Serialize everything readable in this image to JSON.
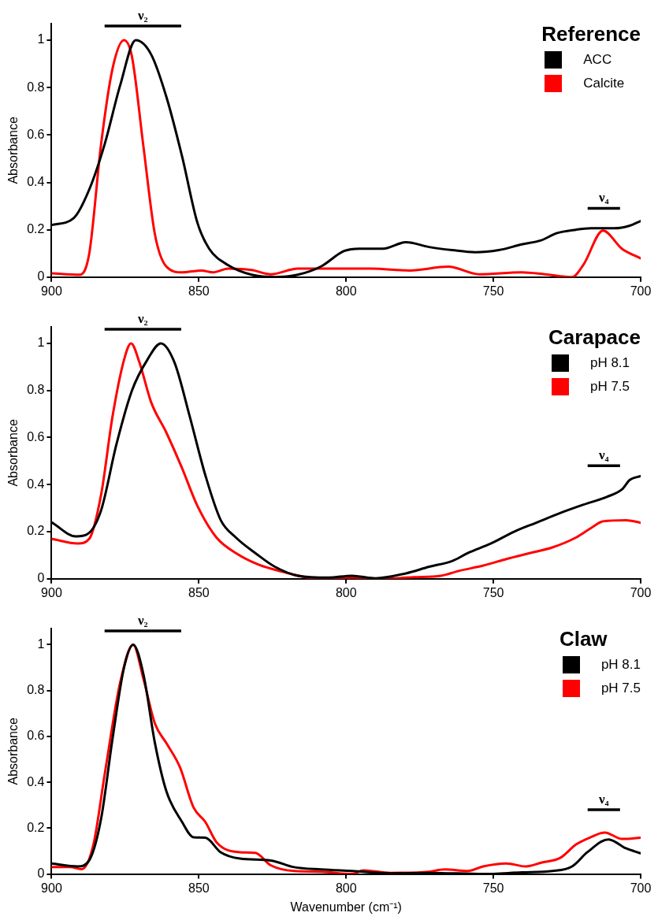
{
  "chart_data": [
    {
      "type": "line",
      "ylabel": "Absorbance",
      "legend_title": "Reference",
      "legend": "top right",
      "xlim": [
        900,
        700
      ],
      "xticks": [
        900,
        850,
        800,
        750,
        700
      ],
      "ylim": [
        0,
        1.07
      ],
      "yticks": [
        0,
        0.2,
        0.4,
        0.6,
        0.8,
        1
      ],
      "grid": false,
      "marker": "none",
      "line_style": "solid",
      "series": [
        {
          "name": "ν₂",
          "type": "line",
          "color": "#000000",
          "x": [
            882,
            856
          ],
          "values": [
            1.06,
            1.06
          ]
        },
        {
          "name": "ν₄",
          "type": "line",
          "color": "#000000",
          "x": [
            718,
            707
          ],
          "values": [
            0.29,
            0.29
          ]
        },
        {
          "name": "ACC",
          "color": "#000000",
          "x": [
            900,
            892.4,
            887.2,
            882,
            876.7,
            871.4,
            866.2,
            861,
            855.7,
            850.5,
            846.5,
            840,
            832.1,
            824.2,
            816.4,
            808.5,
            800.7,
            795.4,
            787.5,
            779.7,
            771.8,
            764,
            756.1,
            748.2,
            740.4,
            733.8,
            728.6,
            722,
            716.8,
            708.9,
            703.7,
            700
          ],
          "values": [
            0.22,
            0.25,
            0.37,
            0.56,
            0.81,
            1.0,
            0.94,
            0.76,
            0.51,
            0.23,
            0.12,
            0.05,
            0.01,
            0.0,
            0.01,
            0.045,
            0.11,
            0.12,
            0.12,
            0.147,
            0.127,
            0.114,
            0.105,
            0.114,
            0.138,
            0.155,
            0.185,
            0.2,
            0.206,
            0.206,
            0.217,
            0.237
          ]
        },
        {
          "name": "Calcite",
          "color": "#ff0000",
          "x": [
            900,
            890.4,
            887.2,
            883.2,
            879.3,
            875.4,
            872.7,
            868.8,
            864.9,
            861,
            855.7,
            849.1,
            845.2,
            840,
            832.1,
            825.6,
            816.4,
            808.5,
            791.5,
            778.4,
            765.3,
            754.8,
            740.4,
            732.5,
            723.3,
            719.4,
            712.8,
            706.3,
            700
          ],
          "values": [
            0.016,
            0.01,
            0.1,
            0.56,
            0.88,
            1.0,
            0.93,
            0.55,
            0.18,
            0.044,
            0.02,
            0.028,
            0.02,
            0.036,
            0.03,
            0.012,
            0.036,
            0.036,
            0.036,
            0.028,
            0.044,
            0.012,
            0.02,
            0.012,
            0,
            0.053,
            0.196,
            0.119,
            0.079
          ]
        }
      ]
    },
    {
      "type": "line",
      "ylabel": "Absorbance",
      "legend_title": "Carapace",
      "legend": "top right",
      "xlim": [
        900,
        700
      ],
      "xticks": [
        900,
        850,
        800,
        750,
        700
      ],
      "ylim": [
        0,
        1.07
      ],
      "yticks": [
        0,
        0.2,
        0.4,
        0.6,
        0.8,
        1
      ],
      "grid": false,
      "marker": "none",
      "line_style": "solid",
      "series": [
        {
          "name": "ν₂",
          "type": "line",
          "color": "#000000",
          "x": [
            882,
            856
          ],
          "values": [
            1.06,
            1.06
          ]
        },
        {
          "name": "ν₄",
          "type": "line",
          "color": "#000000",
          "x": [
            718,
            707
          ],
          "values": [
            0.48,
            0.48
          ]
        },
        {
          "name": "pH 8.1",
          "color": "#000000",
          "x": [
            900,
            891.7,
            887.8,
            883.2,
            878,
            872.7,
            867.5,
            862.9,
            858.3,
            853.1,
            847.8,
            842.6,
            837.4,
            830.8,
            824.2,
            816.4,
            805.9,
            798,
            790.2,
            779.7,
            771.8,
            763.9,
            758.7,
            750.8,
            743,
            735.1,
            727.2,
            719.4,
            711.5,
            706.3,
            703.7,
            700
          ],
          "values": [
            0.24,
            0.18,
            0.19,
            0.29,
            0.57,
            0.8,
            0.93,
            1.0,
            0.92,
            0.69,
            0.44,
            0.25,
            0.175,
            0.109,
            0.051,
            0.013,
            0.005,
            0.013,
            0.002,
            0.023,
            0.051,
            0.076,
            0.109,
            0.15,
            0.2,
            0.24,
            0.28,
            0.315,
            0.348,
            0.38,
            0.42,
            0.436
          ]
        },
        {
          "name": "pH 7.5",
          "color": "#ff0000",
          "x": [
            900,
            891.1,
            887.2,
            883.2,
            879.3,
            875.4,
            873,
            870.2,
            866.2,
            861,
            855.7,
            850.5,
            844,
            837.4,
            829.5,
            821.6,
            813.8,
            805.9,
            798,
            787.5,
            777,
            767.8,
            761.3,
            753.4,
            745.6,
            737.7,
            729.8,
            722,
            716.8,
            712.8,
            705,
            700
          ],
          "values": [
            0.17,
            0.15,
            0.17,
            0.356,
            0.69,
            0.93,
            1.0,
            0.92,
            0.75,
            0.62,
            0.47,
            0.31,
            0.175,
            0.109,
            0.059,
            0.03,
            0.007,
            0,
            0.005,
            0,
            0.007,
            0.013,
            0.035,
            0.056,
            0.084,
            0.109,
            0.134,
            0.175,
            0.216,
            0.244,
            0.249,
            0.238
          ]
        }
      ]
    },
    {
      "type": "line",
      "xlabel": "Wavenumber (cm⁻¹)",
      "ylabel": "Absorbance",
      "legend_title": "Claw",
      "legend": "top right",
      "xlim": [
        900,
        700
      ],
      "xticks": [
        900,
        850,
        800,
        750,
        700
      ],
      "ylim": [
        0,
        1.07
      ],
      "yticks": [
        0,
        0.2,
        0.4,
        0.6,
        0.8,
        1
      ],
      "grid": false,
      "marker": "none",
      "line_style": "solid",
      "series": [
        {
          "name": "ν₂",
          "type": "line",
          "color": "#000000",
          "x": [
            882,
            856
          ],
          "values": [
            1.06,
            1.06
          ]
        },
        {
          "name": "ν₄",
          "type": "line",
          "color": "#000000",
          "x": [
            718,
            707
          ],
          "values": [
            0.28,
            0.28
          ]
        },
        {
          "name": "pH 8.1",
          "color": "#000000",
          "x": [
            900,
            891.1,
            887.2,
            883.2,
            879.3,
            875.4,
            872.3,
            868.8,
            864.9,
            861,
            855.7,
            851.8,
            847.8,
            842.6,
            836,
            825.6,
            817.7,
            808.5,
            798,
            784.9,
            771.8,
            753.5,
            740.4,
            729.9,
            723.3,
            718.1,
            710.9,
            705,
            700
          ],
          "values": [
            0.046,
            0.033,
            0.06,
            0.24,
            0.59,
            0.9,
            1.0,
            0.87,
            0.57,
            0.36,
            0.227,
            0.16,
            0.158,
            0.095,
            0.067,
            0.059,
            0.03,
            0.02,
            0.013,
            0.003,
            0.005,
            0,
            0.007,
            0.013,
            0.033,
            0.095,
            0.151,
            0.112,
            0.09
          ]
        },
        {
          "name": "pH 7.5",
          "color": "#ff0000",
          "x": [
            900,
            893.7,
            889.8,
            885.8,
            881.9,
            876.7,
            872.3,
            868.8,
            864.9,
            861,
            856.4,
            851.8,
            847.8,
            843.9,
            836,
            830.8,
            825.6,
            817.7,
            808.5,
            798,
            794.1,
            784.9,
            771.8,
            766.6,
            758.7,
            753.5,
            745.6,
            739,
            733.8,
            727.2,
            722,
            716.8,
            712.2,
            706.3,
            700
          ],
          "values": [
            0.03,
            0.03,
            0.021,
            0.128,
            0.44,
            0.835,
            1.0,
            0.85,
            0.655,
            0.57,
            0.465,
            0.29,
            0.227,
            0.137,
            0.095,
            0.092,
            0.038,
            0.013,
            0.01,
            0,
            0.016,
            0.005,
            0.01,
            0.02,
            0.013,
            0.033,
            0.046,
            0.033,
            0.049,
            0.071,
            0.128,
            0.161,
            0.181,
            0.153,
            0.158
          ]
        }
      ]
    }
  ]
}
